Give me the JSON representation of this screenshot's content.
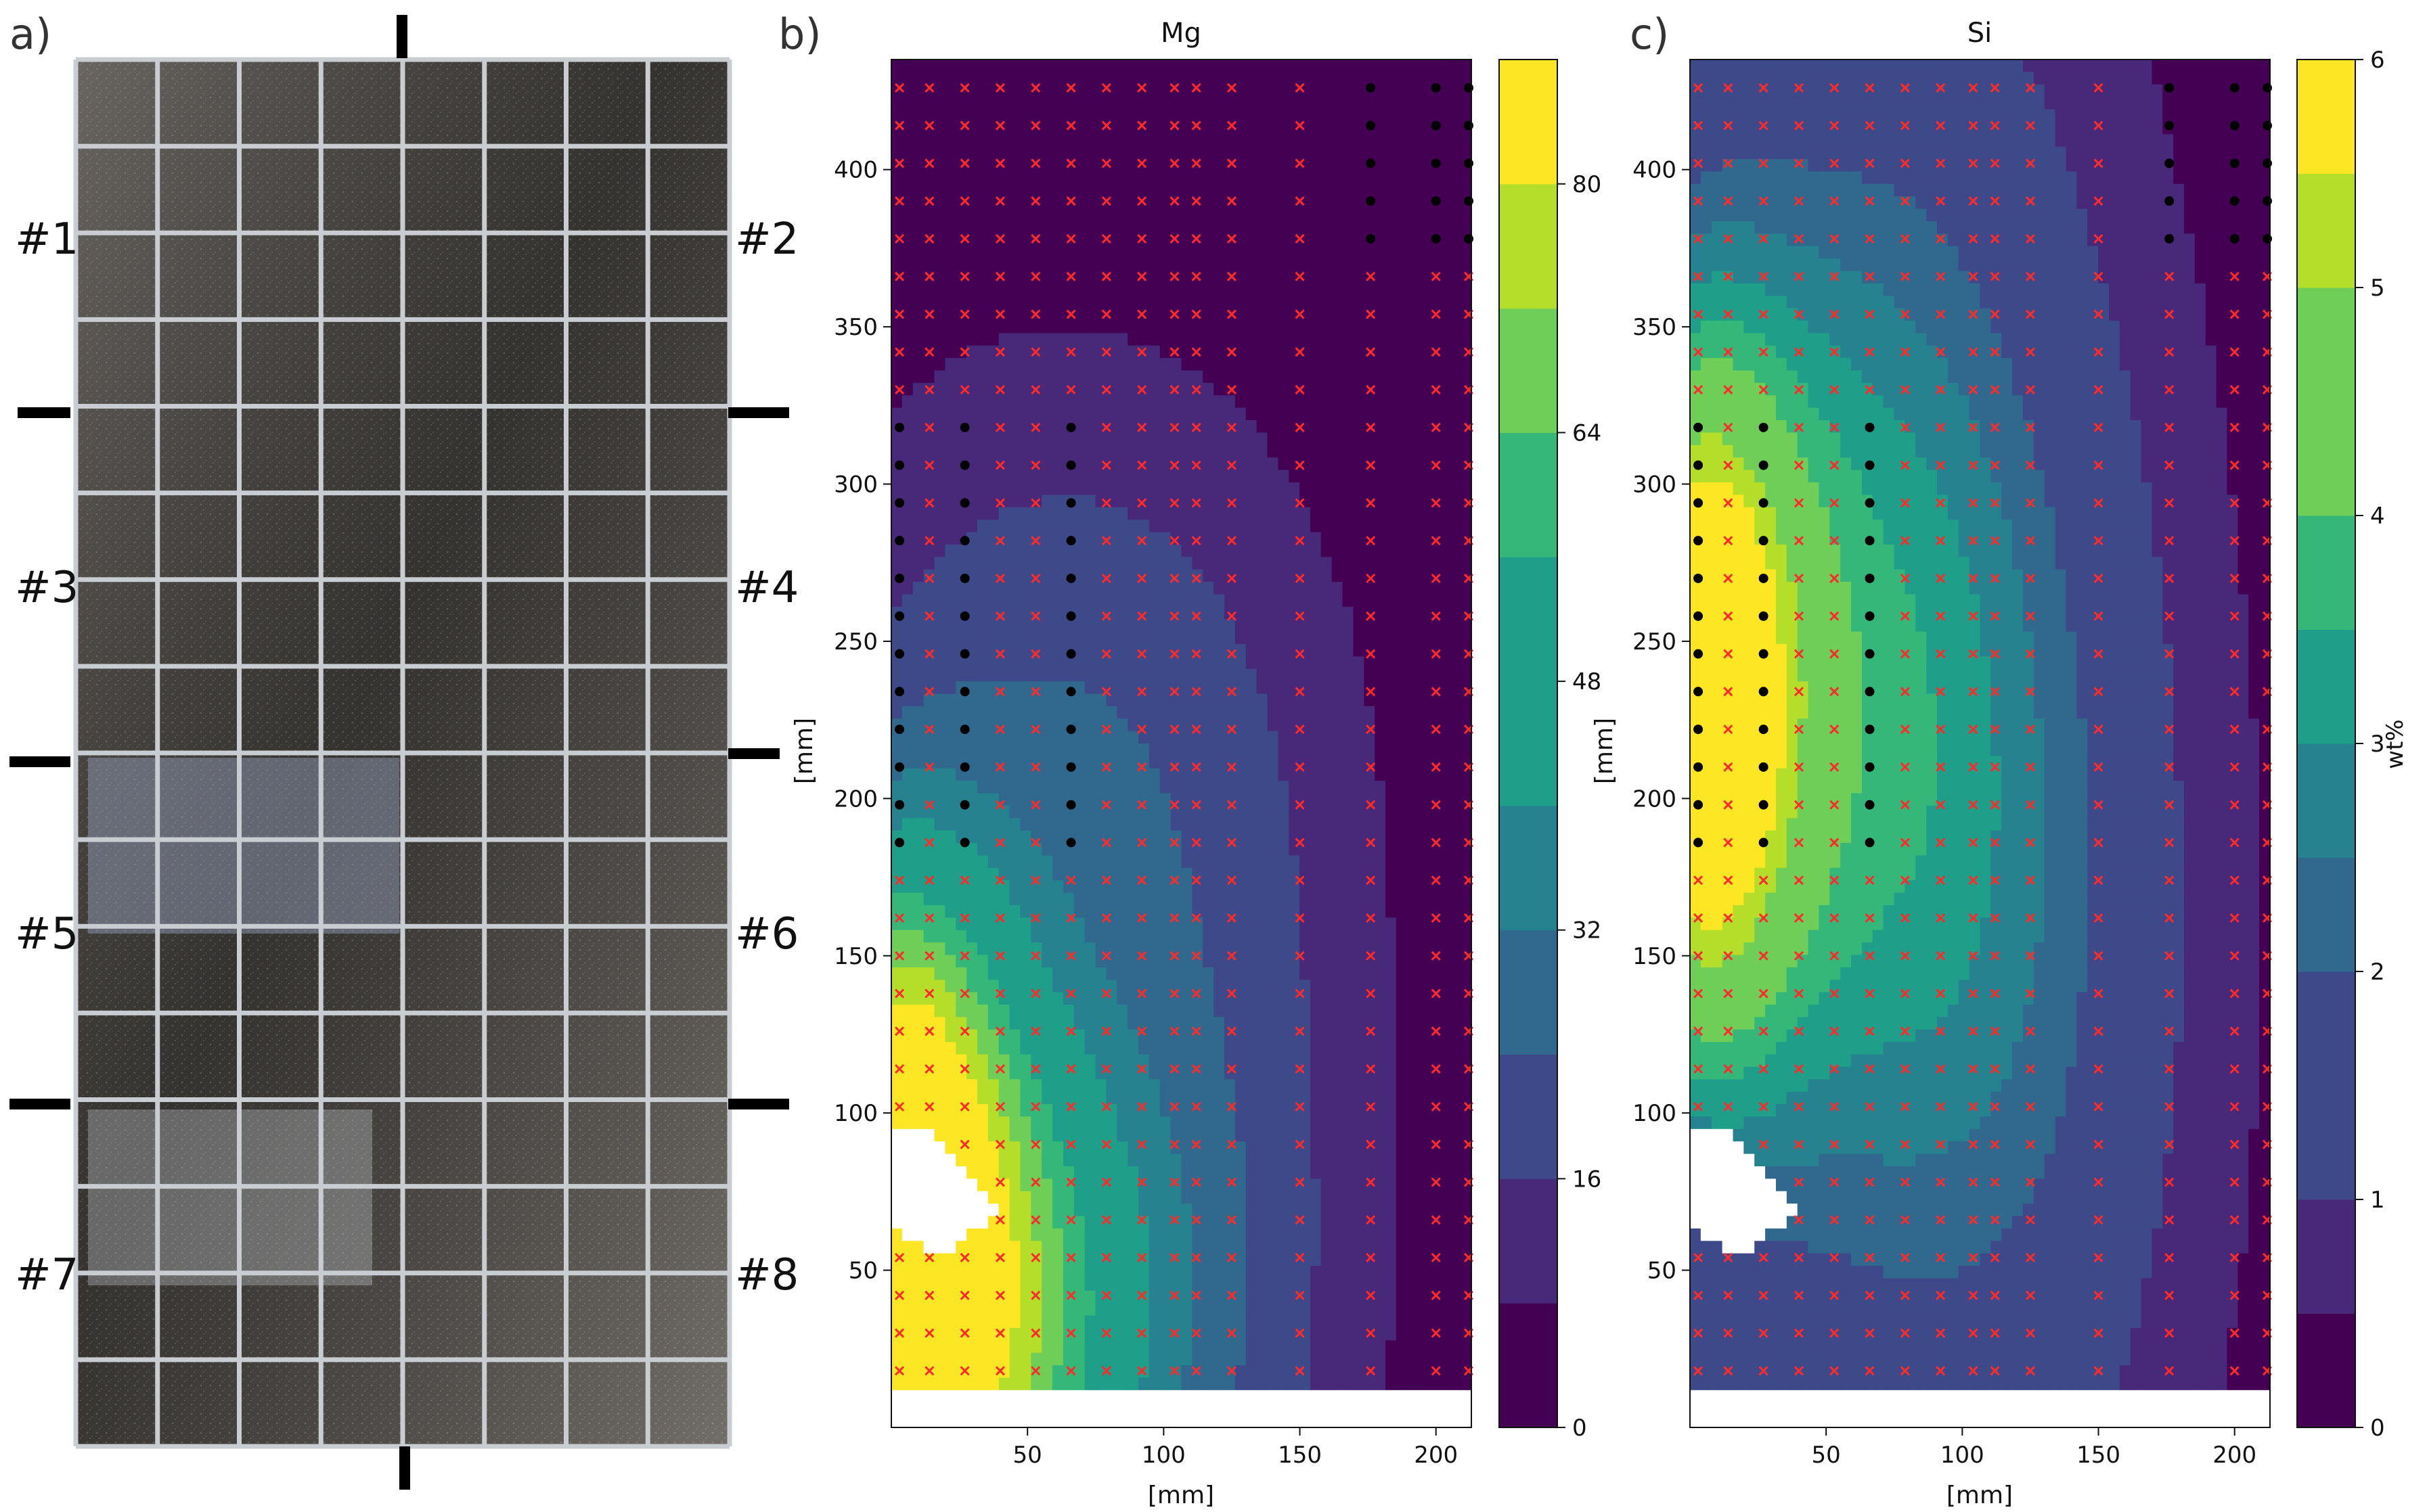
{
  "figure": {
    "panel_labels": [
      "a)",
      "b)",
      "c)"
    ]
  },
  "photo": {
    "section_labels": [
      "#1",
      "#2",
      "#3",
      "#4",
      "#5",
      "#6",
      "#7",
      "#8"
    ]
  },
  "colors": {
    "viridis": [
      "#440154",
      "#482878",
      "#3e4989",
      "#31688e",
      "#26828e",
      "#1f9e89",
      "#35b779",
      "#6ece58",
      "#b5de2b",
      "#fde725"
    ],
    "marker_cross": "#ff2a2a",
    "marker_dot": "#000000"
  },
  "chart_data": [
    {
      "type": "heatmap",
      "subtype": "filled-contour",
      "title": "Mg",
      "xlabel": "[mm]",
      "ylabel": "[mm]",
      "xlim": [
        0,
        213
      ],
      "ylim": [
        0,
        435
      ],
      "x_ticks": [
        50,
        100,
        150,
        200
      ],
      "y_ticks": [
        50,
        100,
        150,
        200,
        250,
        300,
        350,
        400
      ],
      "colorbar": {
        "label": "",
        "ticks": [
          0,
          16,
          32,
          48,
          64,
          80
        ],
        "levels": [
          0,
          8,
          16,
          24,
          32,
          40,
          48,
          56,
          64,
          72,
          80,
          88
        ]
      },
      "value_range": [
        0,
        88
      ],
      "features": [
        {
          "description": "maximum region (~80-88) near x 0-45 mm, y 5-60 mm",
          "x": 20,
          "y": 30,
          "value": 85
        },
        {
          "description": "high region (~65-75) near x 0-30 mm, y 100-130 mm",
          "x": 10,
          "y": 110,
          "value": 70
        },
        {
          "description": "low background (<8) for y > 250 mm and x > 175 mm",
          "x": 100,
          "y": 350,
          "value": 2
        }
      ],
      "masked_regions": [
        {
          "polygon": [
            [
              0,
              95
            ],
            [
              14,
              95
            ],
            [
              40,
              70
            ],
            [
              20,
              55
            ],
            [
              0,
              62
            ]
          ]
        },
        {
          "polygon": [
            [
              0,
              10
            ],
            [
              45,
              10
            ],
            [
              0,
              0
            ]
          ]
        }
      ],
      "legend": "none"
    },
    {
      "type": "heatmap",
      "subtype": "filled-contour",
      "title": "Si",
      "xlabel": "[mm]",
      "ylabel": "[mm]",
      "xlim": [
        0,
        213
      ],
      "ylim": [
        0,
        435
      ],
      "x_ticks": [
        50,
        100,
        150,
        200
      ],
      "y_ticks": [
        50,
        100,
        150,
        200,
        250,
        300,
        350,
        400
      ],
      "colorbar": {
        "label": "wt%",
        "ticks": [
          0,
          1,
          2,
          3,
          4,
          5,
          6
        ],
        "levels": [
          0,
          0.5,
          1,
          1.5,
          2,
          2.5,
          3,
          3.5,
          4,
          4.5,
          5,
          5.5,
          6
        ]
      },
      "value_range": [
        0,
        6
      ],
      "features": [
        {
          "description": "maximum (~5.0-5.5) near x 0-15 mm, y 200-240 mm",
          "x": 5,
          "y": 225,
          "value": 5.2
        },
        {
          "description": "elevated band (~3-4.5) along x 0-40 mm, y 150-330 mm",
          "x": 20,
          "y": 280,
          "value": 4.0
        },
        {
          "description": "low region (<0.5) near x 190-213 mm",
          "x": 200,
          "y": 200,
          "value": 0.4
        }
      ],
      "masked_regions": [
        {
          "polygon": [
            [
              0,
              95
            ],
            [
              14,
              95
            ],
            [
              40,
              70
            ],
            [
              20,
              55
            ],
            [
              0,
              62
            ]
          ]
        },
        {
          "polygon": [
            [
              0,
              10
            ],
            [
              45,
              10
            ],
            [
              0,
              0
            ]
          ]
        }
      ],
      "legend": "none"
    }
  ]
}
